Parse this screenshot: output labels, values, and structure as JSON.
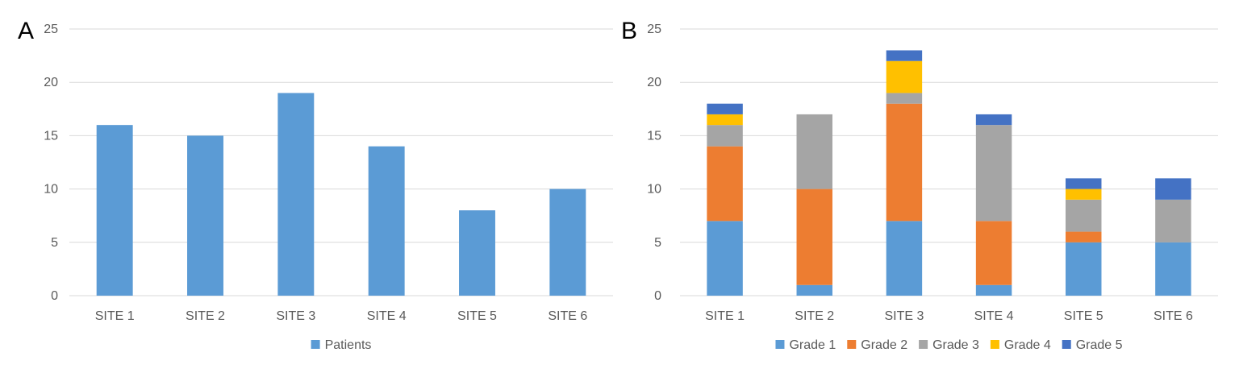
{
  "chart_data": [
    {
      "panel_label": "A",
      "type": "bar",
      "title": "",
      "xlabel": "",
      "ylabel": "",
      "categories": [
        "SITE 1",
        "SITE 2",
        "SITE 3",
        "SITE 4",
        "SITE 5",
        "SITE 6"
      ],
      "series": [
        {
          "name": "Patients",
          "color": "#5b9bd5",
          "values": [
            16,
            15,
            19,
            14,
            8,
            10
          ]
        }
      ],
      "ylim": [
        0,
        25
      ],
      "yticks": [
        0,
        5,
        10,
        15,
        20,
        25
      ],
      "grid": true,
      "legend": "bottom"
    },
    {
      "panel_label": "B",
      "type": "bar",
      "stacked": true,
      "title": "",
      "xlabel": "",
      "ylabel": "",
      "categories": [
        "SITE 1",
        "SITE 2",
        "SITE 3",
        "SITE 4",
        "SITE 5",
        "SITE 6"
      ],
      "series": [
        {
          "name": "Grade 1",
          "color": "#5b9bd5",
          "values": [
            7,
            1,
            7,
            1,
            5,
            5
          ]
        },
        {
          "name": "Grade 2",
          "color": "#ed7d31",
          "values": [
            7,
            9,
            11,
            6,
            1,
            0
          ]
        },
        {
          "name": "Grade 3",
          "color": "#a5a5a5",
          "values": [
            2,
            7,
            1,
            9,
            3,
            4
          ]
        },
        {
          "name": "Grade 4",
          "color": "#ffc000",
          "values": [
            1,
            0,
            3,
            0,
            1,
            0
          ]
        },
        {
          "name": "Grade 5",
          "color": "#4472c4",
          "values": [
            1,
            0,
            1,
            1,
            1,
            2
          ]
        }
      ],
      "ylim": [
        0,
        25
      ],
      "yticks": [
        0,
        5,
        10,
        15,
        20,
        25
      ],
      "grid": true,
      "legend": "bottom"
    }
  ]
}
